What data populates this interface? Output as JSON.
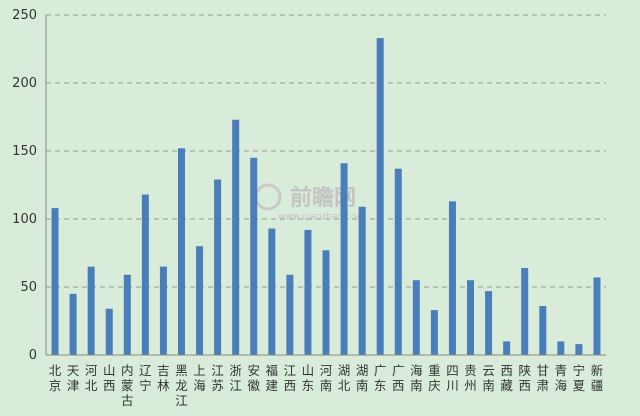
{
  "watermark": {
    "text": "前瞻网",
    "url": "www.qianzhan.com"
  },
  "chart_data": {
    "type": "bar",
    "categories": [
      "北京",
      "天津",
      "河北",
      "山西",
      "内蒙古",
      "辽宁",
      "吉林",
      "黑龙江",
      "上海",
      "江苏",
      "浙江",
      "安徽",
      "福建",
      "江西",
      "山东",
      "河南",
      "湖北",
      "湖南",
      "广东",
      "广西",
      "海南",
      "重庆",
      "四川",
      "贵州",
      "云南",
      "西藏",
      "陕西",
      "甘肃",
      "青海",
      "宁夏",
      "新疆"
    ],
    "values": [
      108,
      45,
      65,
      34,
      59,
      118,
      65,
      152,
      80,
      129,
      173,
      145,
      93,
      59,
      92,
      77,
      141,
      109,
      233,
      137,
      55,
      33,
      113,
      55,
      47,
      10,
      64,
      36,
      10,
      8,
      57
    ],
    "ylim": [
      0,
      250
    ],
    "yticks": [
      0,
      50,
      100,
      150,
      200,
      250
    ],
    "bar_color": "#4a7ebb",
    "grid": true,
    "title": "",
    "xlabel": "",
    "ylabel": ""
  }
}
